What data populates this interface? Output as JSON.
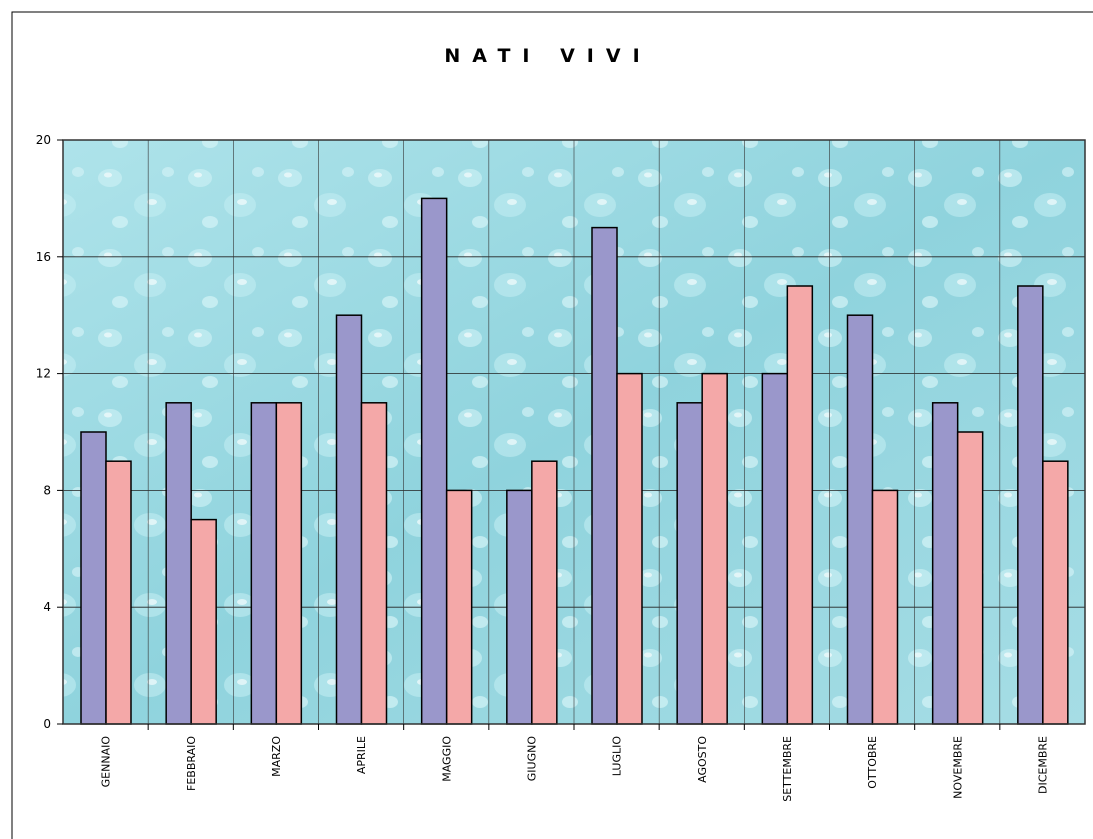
{
  "chart_data": {
    "type": "bar",
    "title": "NATI VIVI",
    "categories": [
      "GENNAIO",
      "FEBBRAIO",
      "MARZO",
      "APRILE",
      "MAGGIO",
      "GIUGNO",
      "LUGLIO",
      "AGOSTO",
      "SETTEMBRE",
      "OTTOBRE",
      "NOVEMBRE",
      "DICEMBRE"
    ],
    "series": [
      {
        "color": "#9a97cb",
        "values": [
          10,
          11,
          11,
          14,
          18,
          8,
          17,
          11,
          12,
          14,
          11,
          15
        ]
      },
      {
        "color": "#f4a8a8",
        "values": [
          9,
          7,
          11,
          11,
          8,
          9,
          12,
          12,
          15,
          8,
          10,
          9
        ]
      }
    ],
    "ylim": [
      0,
      20
    ],
    "yticks": [
      0,
      4,
      8,
      12,
      16,
      20
    ],
    "grid": true
  }
}
